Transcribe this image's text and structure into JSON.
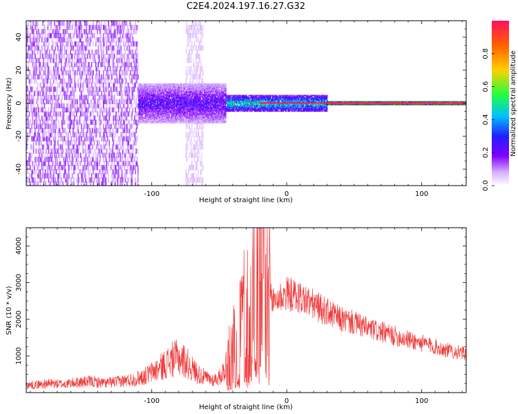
{
  "figure": {
    "title": "C2E4.2024.197.16.27.G32"
  },
  "colors": {
    "background": "#ffffff",
    "axis": "#000000",
    "snr_line": "#f03838",
    "spectrogram_palette": [
      "#ffffff",
      "#d8b0ff",
      "#8000ff",
      "#2020ff",
      "#00c0ff",
      "#20ff40",
      "#ffd000",
      "#ff6000",
      "#ff1060"
    ]
  },
  "chart_data": [
    {
      "type": "heatmap",
      "title": "",
      "xlabel": "Height of straight line (km)",
      "ylabel": "Frequency (Hz)",
      "xlim": [
        -193,
        133
      ],
      "ylim": [
        -50,
        50
      ],
      "x_ticks": [
        -100,
        0,
        100
      ],
      "y_ticks": [
        -40,
        -20,
        0,
        20,
        40
      ],
      "colorbar": {
        "label": "Normalized spectral amplitude",
        "range": [
          0.0,
          1.0
        ],
        "ticks": [
          "0.0",
          "0.2",
          "0.4",
          "0.6",
          "0.8"
        ],
        "tick_values": [
          0.0,
          0.2,
          0.4,
          0.6,
          0.8
        ]
      },
      "regions": [
        {
          "x_range": [
            -193,
            -110
          ],
          "freq_range": [
            -50,
            50
          ],
          "amplitude": 0.15,
          "description": "broadband low-amplitude noise"
        },
        {
          "x_range": [
            -75,
            -62
          ],
          "freq_range": [
            -50,
            50
          ],
          "amplitude": 0.08,
          "description": "faint vertical band"
        },
        {
          "x_range": [
            -110,
            -45
          ],
          "freq_range": [
            -12,
            12
          ],
          "amplitude": 0.3
        },
        {
          "x_range": [
            -45,
            30
          ],
          "freq_range": [
            -5,
            5
          ],
          "amplitude": 0.55
        },
        {
          "x_range": [
            30,
            133
          ],
          "freq_range": [
            -1,
            1
          ],
          "amplitude": 0.95
        }
      ]
    },
    {
      "type": "line",
      "title": "",
      "xlabel": "Height of straight line (km)",
      "ylabel": "SNR (10 * v/v)",
      "xlim": [
        -193,
        133
      ],
      "ylim": [
        0,
        4500
      ],
      "x_ticks": [
        -100,
        0,
        100
      ],
      "y_ticks": [
        1000,
        2000,
        3000,
        4000
      ],
      "series": [
        {
          "x": [
            -193,
            -185,
            -175,
            -165,
            -155,
            -145,
            -135,
            -125,
            -115,
            -105,
            -95,
            -85,
            -80,
            -75,
            -70,
            -65,
            -60,
            -55,
            -50,
            -45,
            -40,
            -35,
            -30,
            -25,
            -20,
            -18,
            -15,
            -10,
            -5,
            0,
            5,
            10,
            15,
            20,
            25,
            30,
            35,
            40,
            50,
            60,
            70,
            80,
            90,
            100,
            110,
            120,
            133
          ],
          "values": [
            200,
            220,
            250,
            230,
            280,
            300,
            260,
            300,
            350,
            450,
            650,
            900,
            950,
            850,
            650,
            500,
            400,
            350,
            400,
            700,
            1200,
            1800,
            2300,
            2800,
            3500,
            4400,
            2600,
            2500,
            2600,
            2700,
            2650,
            2600,
            2500,
            2400,
            2300,
            2200,
            2100,
            2000,
            1900,
            1750,
            1650,
            1550,
            1450,
            1350,
            1250,
            1150,
            1050
          ]
        }
      ]
    }
  ]
}
